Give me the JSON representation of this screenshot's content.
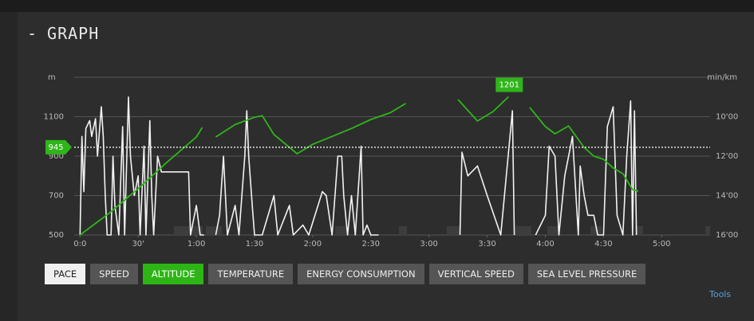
{
  "header": {
    "toggle": "-",
    "title": "GRAPH"
  },
  "chart_data": {
    "type": "line",
    "y_label": "m",
    "y2_label": "min/km",
    "xlim": [
      -3,
      325
    ],
    "xticks": [
      {
        "value": 0,
        "label": "0:0"
      },
      {
        "value": 30,
        "label": "30'"
      },
      {
        "value": 60,
        "label": "1:00"
      },
      {
        "value": 90,
        "label": "1:30"
      },
      {
        "value": 120,
        "label": "2:00"
      },
      {
        "value": 150,
        "label": "2:30"
      },
      {
        "value": 180,
        "label": "3:00"
      },
      {
        "value": 210,
        "label": "3:30"
      },
      {
        "value": 240,
        "label": "4:00"
      },
      {
        "value": 270,
        "label": "4:30"
      },
      {
        "value": 300,
        "label": "5:00"
      }
    ],
    "ylim": [
      500,
      1300
    ],
    "yticks": [
      500,
      700,
      900,
      1100
    ],
    "y2lim": [
      16,
      8
    ],
    "y2ticks": [
      {
        "value": 10,
        "label": "10'00"
      },
      {
        "value": 12,
        "label": "12'00"
      },
      {
        "value": 14,
        "label": "14'00"
      },
      {
        "value": 16,
        "label": "16'00"
      }
    ],
    "grid": true,
    "series": [
      {
        "name": "PACE",
        "color": "#f2f2f2",
        "axis": "y2",
        "x": [
          0,
          1,
          2,
          3,
          5,
          6,
          8,
          9,
          11,
          12,
          13,
          14,
          16,
          17,
          18,
          20,
          22,
          23,
          25,
          26,
          28,
          30,
          31,
          33,
          34,
          36,
          37,
          38,
          40,
          42,
          50,
          56,
          57,
          60,
          62,
          64,
          66,
          70,
          72,
          74,
          76,
          80,
          82,
          85,
          86,
          87,
          89,
          90,
          94,
          100,
          102,
          108,
          110,
          115,
          118,
          125,
          127,
          130,
          133,
          135,
          136,
          138,
          140,
          142,
          145,
          146,
          148,
          150,
          154,
          160,
          196,
          197,
          200,
          205,
          210,
          217,
          223,
          224,
          226,
          235,
          240,
          242,
          245,
          247,
          250,
          254,
          257,
          258,
          260,
          262,
          265,
          267,
          270,
          272,
          275,
          277,
          280,
          282,
          284,
          285,
          286,
          287
        ],
        "values": [
          16,
          11,
          13.8,
          10.6,
          10.2,
          11,
          10.1,
          12,
          9.5,
          11,
          14,
          16,
          16,
          12,
          14.5,
          16,
          10.5,
          16,
          9,
          12,
          14,
          13,
          16,
          11.5,
          16,
          10.2,
          14,
          16,
          12,
          12.8,
          12.8,
          12.8,
          16,
          14.5,
          16,
          16,
          null,
          16,
          15,
          12,
          16,
          14.5,
          16,
          12,
          9.7,
          12,
          14.7,
          16,
          16,
          14,
          16,
          14.5,
          16,
          15.5,
          16,
          13.8,
          14,
          16,
          12,
          12,
          14,
          16,
          14,
          16,
          11.5,
          16,
          15.5,
          16,
          16,
          null,
          16,
          11.8,
          13,
          12.5,
          14,
          16,
          9.7,
          16,
          null,
          16,
          15,
          11.5,
          12,
          16,
          13,
          11,
          16,
          12.5,
          14,
          15,
          15,
          16,
          16,
          10.5,
          9.5,
          15,
          16,
          12,
          9.2,
          16,
          9.7,
          16
        ]
      },
      {
        "name": "ALTITUDE",
        "color": "#2fb51a",
        "axis": "y",
        "x": [
          0,
          15,
          30,
          45,
          60,
          63,
          66,
          70,
          80,
          90,
          94,
          100,
          112,
          120,
          130,
          140,
          150,
          160,
          168,
          172,
          195,
          205,
          213,
          221,
          224,
          232,
          240,
          245,
          252,
          260,
          265,
          270,
          275,
          280,
          285,
          288
        ],
        "values": [
          500,
          610,
          735,
          870,
          997,
          1045,
          null,
          997,
          1060,
          1097,
          1105,
          1010,
          912,
          960,
          1000,
          1040,
          1086,
          1120,
          1167,
          null,
          1187,
          1078,
          1126,
          1201,
          null,
          1147,
          1050,
          1013,
          1053,
          944,
          900,
          884,
          840,
          811,
          730,
          722
        ]
      }
    ],
    "cursor_marker": {
      "value": 945
    },
    "max_marker": {
      "x": 221,
      "value": 1201
    }
  },
  "buttons": [
    {
      "label": "PACE",
      "background": "#f0f0f0",
      "text_color": "#222"
    },
    {
      "label": "SPEED",
      "background": "#555555",
      "text_color": "#eee"
    },
    {
      "label": "ALTITUDE",
      "background": "#2db515",
      "text_color": "#fff"
    },
    {
      "label": "TEMPERATURE",
      "background": "#555555",
      "text_color": "#eee"
    },
    {
      "label": "ENERGY CONSUMPTION",
      "background": "#555555",
      "text_color": "#eee"
    },
    {
      "label": "VERTICAL SPEED",
      "background": "#555555",
      "text_color": "#eee"
    },
    {
      "label": "SEA LEVEL PRESSURE",
      "background": "#555555",
      "text_color": "#eee"
    }
  ],
  "tools": "Tools"
}
